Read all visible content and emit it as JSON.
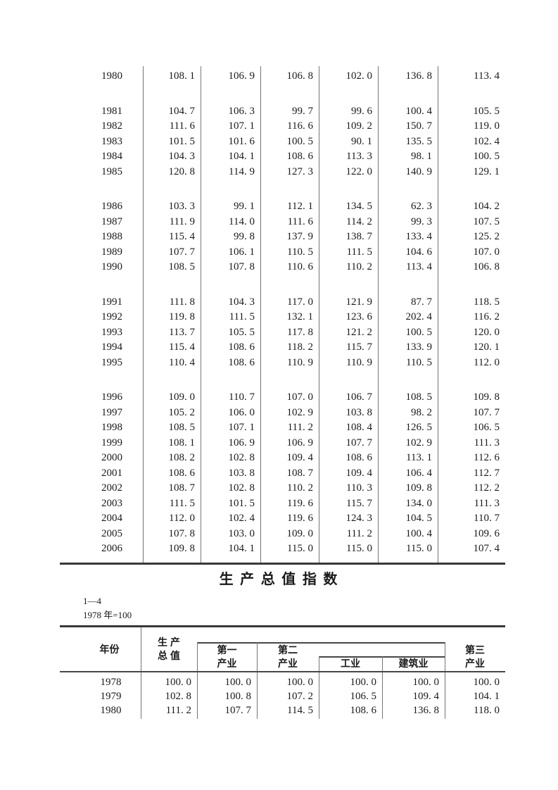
{
  "section": {
    "title": "生 产 总 值 指 数",
    "table_number": "1—4",
    "base_period": "1978 年=100"
  },
  "top_table": {
    "row_groups": [
      [
        [
          "1980",
          "108.1",
          "106.9",
          "106.8",
          "102.0",
          "136.8",
          "113.4"
        ]
      ],
      [
        [
          "1981",
          "104.7",
          "106.3",
          "99.7",
          "99.6",
          "100.4",
          "105.5"
        ],
        [
          "1982",
          "111.6",
          "107.1",
          "116.6",
          "109.2",
          "150.7",
          "119.0"
        ],
        [
          "1983",
          "101.5",
          "101.6",
          "100.5",
          "90.1",
          "135.5",
          "102.4"
        ],
        [
          "1984",
          "104.3",
          "104.1",
          "108.6",
          "113.3",
          "98.1",
          "100.5"
        ],
        [
          "1985",
          "120.8",
          "114.9",
          "127.3",
          "122.0",
          "140.9",
          "129.1"
        ]
      ],
      [
        [
          "1986",
          "103.3",
          "99.1",
          "112.1",
          "134.5",
          "62.3",
          "104.2"
        ],
        [
          "1987",
          "111.9",
          "114.0",
          "111.6",
          "114.2",
          "99.3",
          "107.5"
        ],
        [
          "1988",
          "115.4",
          "99.8",
          "137.9",
          "138.7",
          "133.4",
          "125.2"
        ],
        [
          "1989",
          "107.7",
          "106.1",
          "110.5",
          "111.5",
          "104.6",
          "107.0"
        ],
        [
          "1990",
          "108.5",
          "107.8",
          "110.6",
          "110.2",
          "113.4",
          "106.8"
        ]
      ],
      [
        [
          "1991",
          "111.8",
          "104.3",
          "117.0",
          "121.9",
          "87.7",
          "118.5"
        ],
        [
          "1992",
          "119.8",
          "111.5",
          "132.1",
          "123.6",
          "202.4",
          "116.2"
        ],
        [
          "1993",
          "113.7",
          "105.5",
          "117.8",
          "121.2",
          "100.5",
          "120.0"
        ],
        [
          "1994",
          "115.4",
          "108.6",
          "118.2",
          "115.7",
          "133.9",
          "120.1"
        ],
        [
          "1995",
          "110.4",
          "108.6",
          "110.9",
          "110.9",
          "110.5",
          "112.0"
        ]
      ],
      [
        [
          "1996",
          "109.0",
          "110.7",
          "107.0",
          "106.7",
          "108.5",
          "109.8"
        ],
        [
          "1997",
          "105.2",
          "106.0",
          "102.9",
          "103.8",
          "98.2",
          "107.7"
        ],
        [
          "1998",
          "108.5",
          "107.1",
          "111.2",
          "108.4",
          "126.5",
          "106.5"
        ],
        [
          "1999",
          "108.1",
          "106.9",
          "106.9",
          "107.7",
          "102.9",
          "111.3"
        ],
        [
          "2000",
          "108.2",
          "102.8",
          "109.4",
          "108.6",
          "113.1",
          "112.6"
        ],
        [
          "2001",
          "108.6",
          "103.8",
          "108.7",
          "109.4",
          "106.4",
          "112.7"
        ],
        [
          "2002",
          "108.7",
          "102.8",
          "110.2",
          "110.3",
          "109.8",
          "112.2"
        ],
        [
          "2003",
          "111.5",
          "101.5",
          "119.6",
          "115.7",
          "134.0",
          "111.3"
        ],
        [
          "2004",
          "112.0",
          "102.4",
          "119.6",
          "124.3",
          "104.5",
          "110.7"
        ],
        [
          "2005",
          "107.8",
          "103.0",
          "109.0",
          "111.2",
          "100.4",
          "109.6"
        ],
        [
          "2006",
          "109.8",
          "104.1",
          "115.0",
          "115.0",
          "115.0",
          "107.4"
        ]
      ]
    ]
  },
  "bottom_table": {
    "header": {
      "year": "年份",
      "gdp_line1": "生 产",
      "gdp_line2": "总 值",
      "primary_line1": "第一",
      "primary_line2": "产业",
      "secondary_line1": "第二",
      "secondary_line2": "产业",
      "industry": "工业",
      "construction": "建筑业",
      "tertiary_line1": "第三",
      "tertiary_line2": "产业"
    },
    "rows": [
      [
        "1978",
        "100.0",
        "100.0",
        "100.0",
        "100.0",
        "100.0",
        "100.0"
      ],
      [
        "1979",
        "102.8",
        "100.8",
        "107.2",
        "106.5",
        "109.4",
        "104.1"
      ],
      [
        "1980",
        "111.2",
        "107.7",
        "114.5",
        "108.6",
        "136.8",
        "118.0"
      ]
    ]
  }
}
